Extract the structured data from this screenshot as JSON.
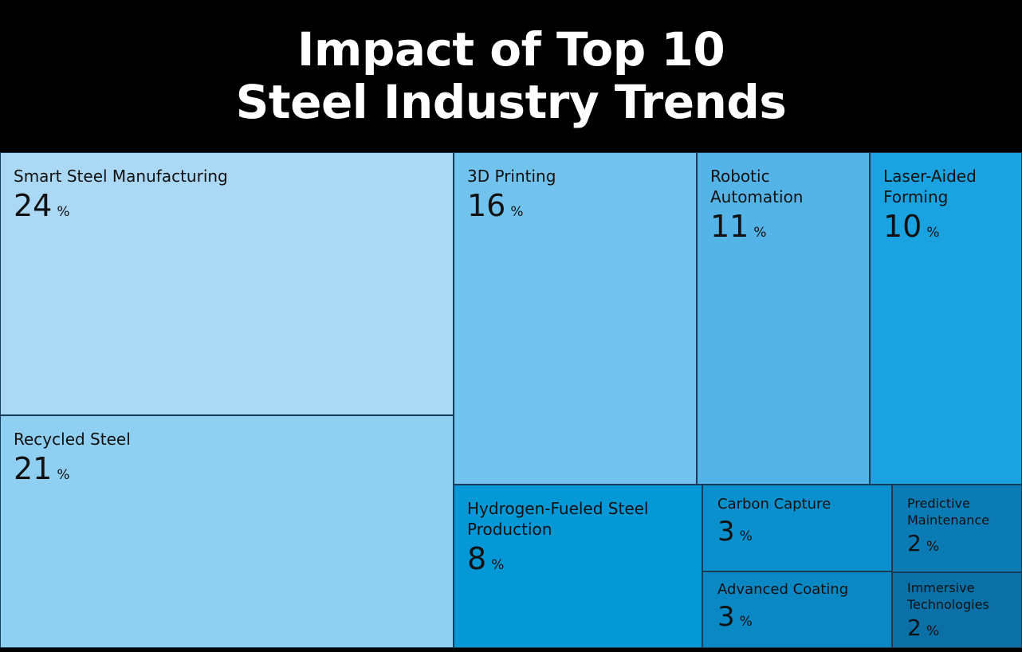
{
  "chart_data": {
    "type": "treemap",
    "title_lines": [
      "Impact of Top 10",
      "Steel Industry Trends"
    ],
    "unit": "%",
    "items": [
      {
        "label": "Smart Steel Manufacturing",
        "value": 24,
        "color": "#abd8f5"
      },
      {
        "label": "Recycled Steel",
        "value": 21,
        "color": "#8ecff2"
      },
      {
        "label": "3D Printing",
        "value": 16,
        "color": "#72c2ee"
      },
      {
        "label": "Robotic Automation",
        "value": 11,
        "color": "#54b4e8"
      },
      {
        "label": "Laser-Aided Forming",
        "value": 10,
        "color": "#1aa3e0"
      },
      {
        "label": "Hydrogen-Fueled Steel Production",
        "value": 8,
        "color": "#0598d6"
      },
      {
        "label": "Carbon Capture",
        "value": 3,
        "color": "#0a90cd"
      },
      {
        "label": "Advanced Coating",
        "value": 3,
        "color": "#0a88c4"
      },
      {
        "label": "Predictive Maintenance",
        "value": 2,
        "color": "#0a7bb5"
      },
      {
        "label": "Immersive Technologies",
        "value": 2,
        "color": "#0a70a6"
      }
    ]
  }
}
